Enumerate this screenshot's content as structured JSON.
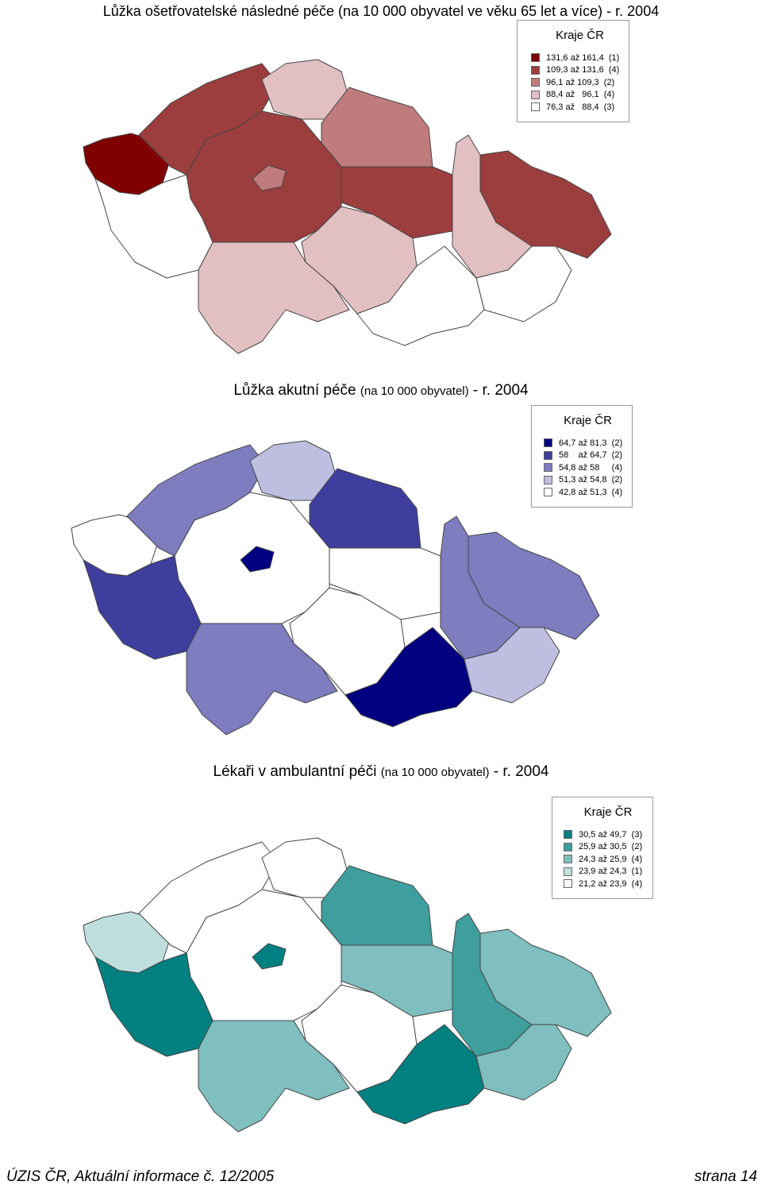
{
  "maps": [
    {
      "title": "Lůžka ošetřovatelské následné péče (na 10 000 obyvatel ve věku 65 let a více) - r. 2004",
      "legend_title": "Kraje ČR",
      "legend": [
        {
          "label": "131,6 až 161,4  (1)",
          "color": "#800000"
        },
        {
          "label": "109,3 až 131,6  (4)",
          "color": "#9c3e3e"
        },
        {
          "label": "96,1 až 109,3  (2)",
          "color": "#c07c7c"
        },
        {
          "label": "88,4 až   96,1  (4)",
          "color": "#e2c0c2"
        },
        {
          "label": "76,3 až   88,4  (3)",
          "color": "#ffffff"
        }
      ]
    },
    {
      "title_main": "Lůžka akutní péče",
      "title_sub": "(na 10 000 obyvatel)",
      "title_tail": " - r. 2004",
      "legend_title": "Kraje ČR",
      "legend": [
        {
          "label": "64,7 až 81,3  (2)",
          "color": "#000080"
        },
        {
          "label": "58    až 64,7  (2)",
          "color": "#3e3e9e"
        },
        {
          "label": "54,8 až 58     (4)",
          "color": "#7d7dc0"
        },
        {
          "label": "51,3 až 54,8  (2)",
          "color": "#bebee0"
        },
        {
          "label": "42,8 až 51,3  (4)",
          "color": "#ffffff"
        }
      ]
    },
    {
      "title_main": "Lékaři v ambulantní péči",
      "title_sub": "(na 10 000 obyvatel)",
      "title_tail": " - r. 2004",
      "legend_title": "Kraje ČR",
      "legend": [
        {
          "label": "30,5 až 49,7  (3)",
          "color": "#008080"
        },
        {
          "label": "25,9 až 30,5  (2)",
          "color": "#3f9f9f"
        },
        {
          "label": "24,3 až 25,9  (4)",
          "color": "#7fbfbf"
        },
        {
          "label": "23,9 až 24,3  (1)",
          "color": "#bfdfdf"
        },
        {
          "label": "21,2 až 23,9  (4)",
          "color": "#ffffff"
        }
      ]
    }
  ],
  "footer": {
    "left": "ÚZIS ČR, Aktuální informace č. 12/2005",
    "right": "strana 14"
  }
}
